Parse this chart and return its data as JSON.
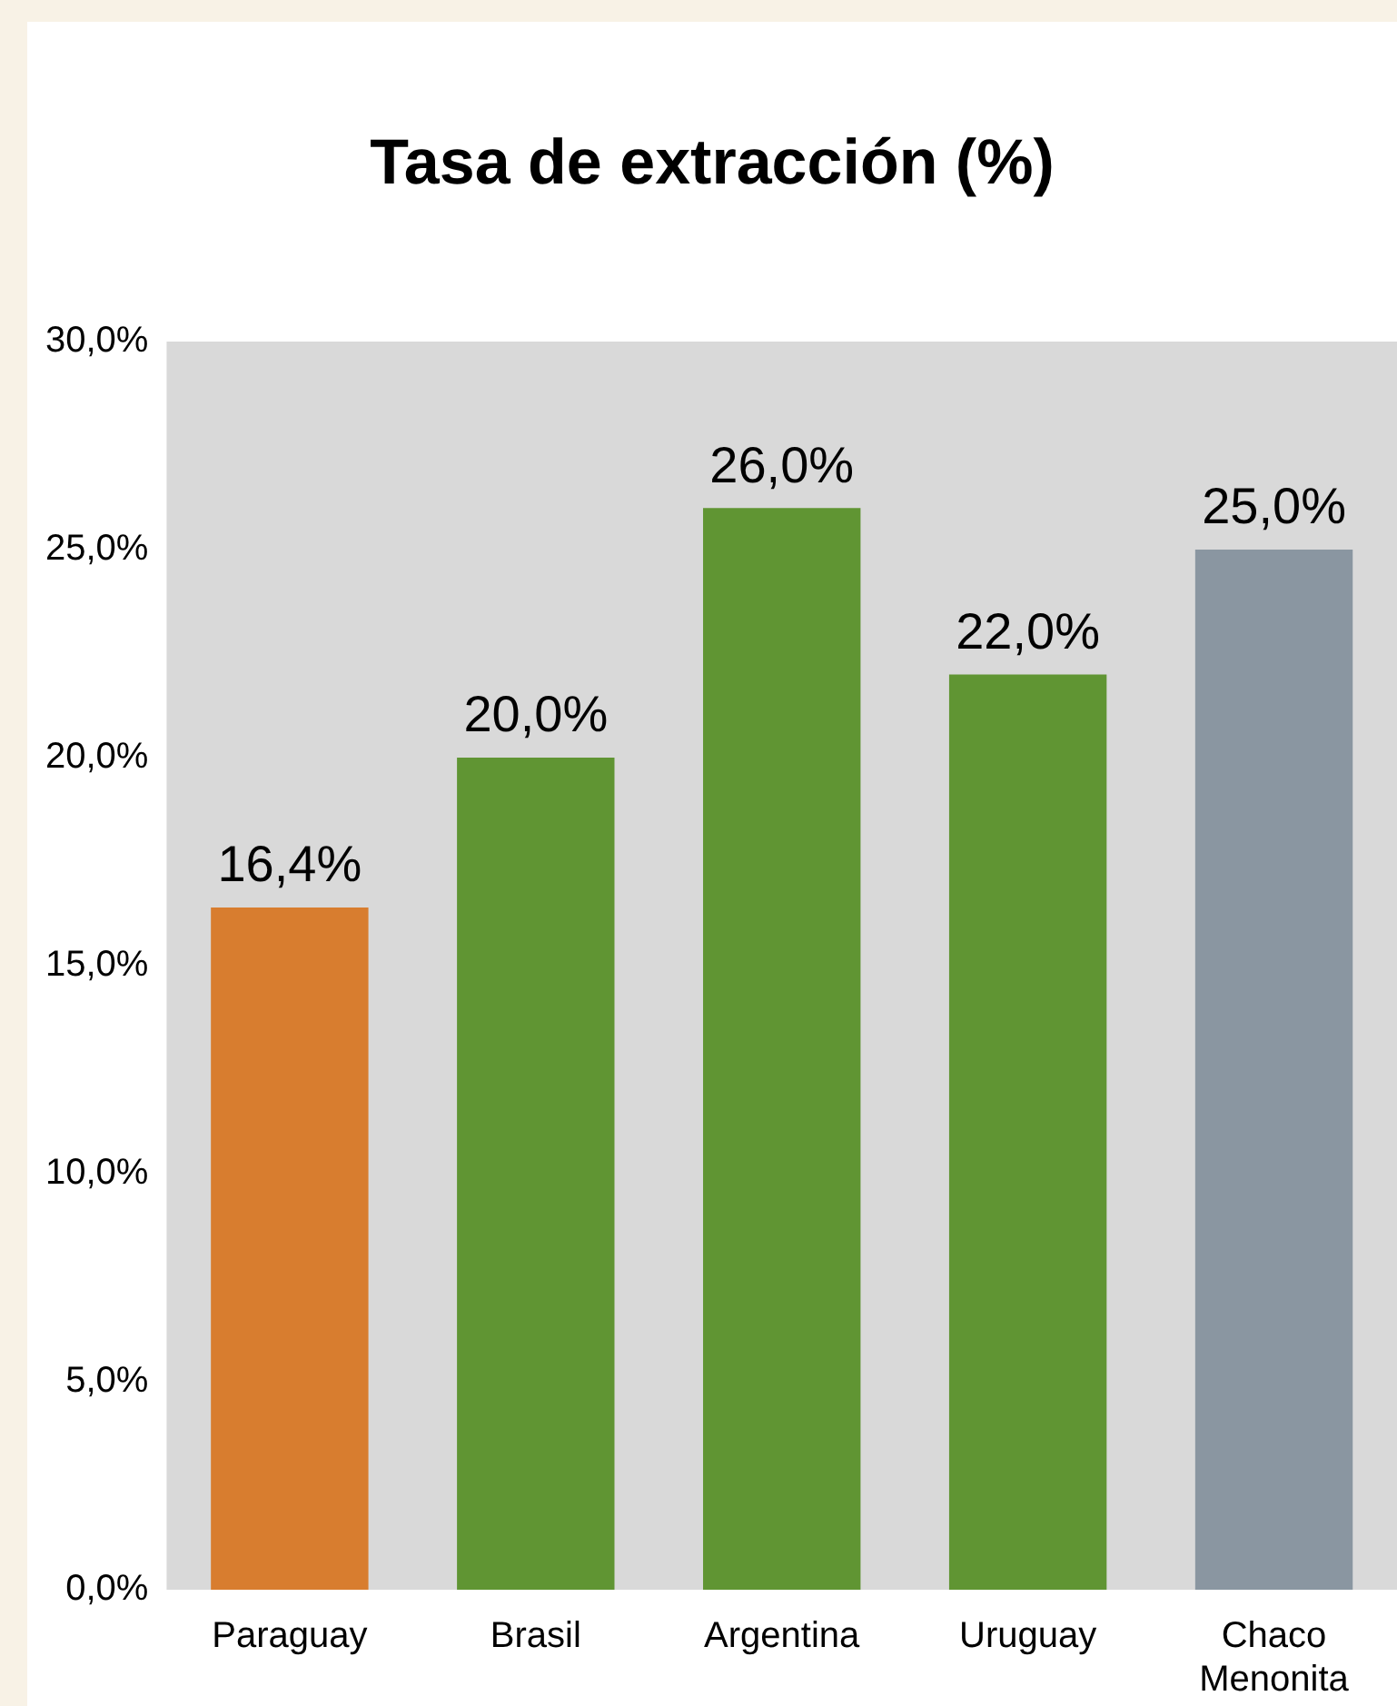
{
  "chart_data": {
    "type": "bar",
    "title": "Tasa de extracción (%)",
    "categories": [
      "Paraguay",
      "Brasil",
      "Argentina",
      "Uruguay",
      "Chaco Menonita"
    ],
    "values": [
      16.4,
      20.0,
      26.0,
      22.0,
      25.0
    ],
    "colors": [
      "#d87d2f",
      "#609533",
      "#609533",
      "#609533",
      "#8a96a1"
    ],
    "value_labels": [
      "16,4%",
      "20,0%",
      "26,0%",
      "22,0%",
      "25,0%"
    ],
    "ylim": [
      0,
      30
    ],
    "yticks": [
      {
        "value": 0,
        "label": "0,0%"
      },
      {
        "value": 5,
        "label": "5,0%"
      },
      {
        "value": 10,
        "label": "10,0%"
      },
      {
        "value": 15,
        "label": "15,0%"
      },
      {
        "value": 20,
        "label": "20,0%"
      },
      {
        "value": 25,
        "label": "25,0%"
      },
      {
        "value": 30,
        "label": "30,0%"
      }
    ],
    "grid": false,
    "legend": false
  }
}
